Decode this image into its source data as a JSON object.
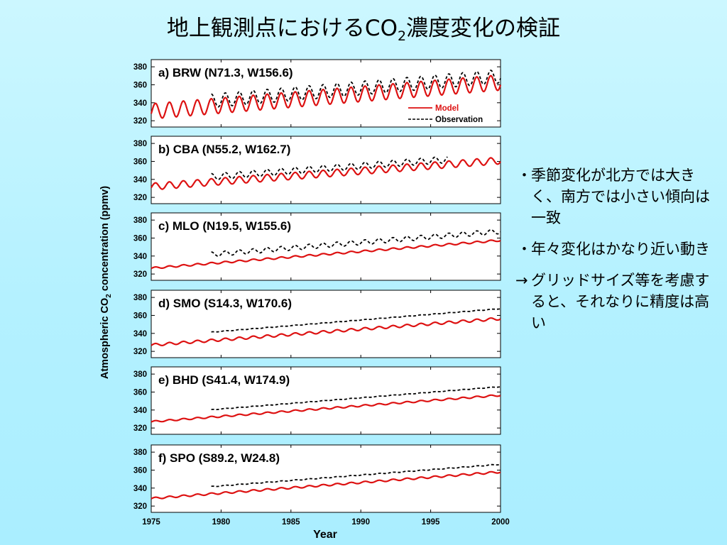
{
  "slide": {
    "title_main": "地上観測点におけるCO",
    "title_sub": "2",
    "title_tail": "濃度変化の検証"
  },
  "bullets": [
    {
      "mark": "・",
      "text": "季節変化が北方では大きく、南方では小さい傾向は一致"
    },
    {
      "mark": "・",
      "text": "年々変化はかなり近い動き"
    },
    {
      "mark": "→",
      "text": "グリッドサイズ等を考慮すると、それなりに精度は高い"
    }
  ],
  "colors": {
    "model": "#dd1111",
    "observation": "#000000"
  },
  "chart_data": {
    "type": "line",
    "x_range": [
      1975,
      2000
    ],
    "x_ticks": [
      1975,
      1980,
      1985,
      1990,
      1995,
      2000
    ],
    "xlabel": "Year",
    "ylabel_pre": "Atmospheric CO",
    "ylabel_sub": "2",
    "ylabel_post": " concentration (ppmv)",
    "ylim": [
      313,
      388
    ],
    "y_ticks": [
      320,
      340,
      360,
      380
    ],
    "legend": {
      "placement": "bottom-right of panel a",
      "model": "Model",
      "observation": "Observation"
    },
    "obs_start": 1979.3,
    "panels": [
      {
        "label": "a) BRW (N71.3, W156.6)",
        "model": {
          "start": 330.5,
          "end": 362.5,
          "amp": 8.5
        },
        "obs": {
          "start": 336.5,
          "end": 369.5,
          "amp": 7.5
        }
      },
      {
        "label": "b) CBA (N55.2, W162.7)",
        "model": {
          "start": 332.0,
          "end": 361.0,
          "amp": 3.8
        },
        "obs": {
          "start": 338.0,
          "end": 366.5,
          "amp": 3.6
        },
        "obs_end": 1996.2
      },
      {
        "label": "c) MLO (N19.5, W155.6)",
        "model": {
          "start": 326.5,
          "end": 357.5,
          "amp": 1.0
        },
        "obs": {
          "start": 336.5,
          "end": 367.5,
          "amp": 2.6
        }
      },
      {
        "label": "d) SMO (S14.3, W170.6)",
        "model": {
          "start": 327.0,
          "end": 356.5,
          "amp": 1.4
        },
        "obs": {
          "start": 336.0,
          "end": 367.5,
          "amp": 0.3
        }
      },
      {
        "label": "e) BHD (S41.4, W174.9)",
        "model": {
          "start": 327.0,
          "end": 356.5,
          "amp": 0.9
        },
        "obs": {
          "start": 335.0,
          "end": 366.0,
          "amp": 0.3
        }
      },
      {
        "label": "f) SPO (S89.2, W24.8)",
        "model": {
          "start": 328.5,
          "end": 358.0,
          "amp": 1.0
        },
        "obs": {
          "start": 336.5,
          "end": 366.5,
          "amp": 0.4
        }
      }
    ]
  }
}
